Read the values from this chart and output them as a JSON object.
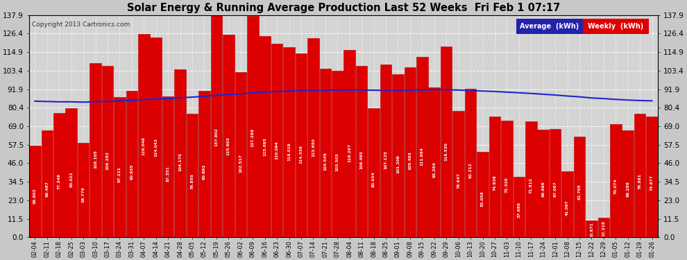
{
  "title": "Solar Energy & Running Average Production Last 52 Weeks  Fri Feb 1 07:17",
  "copyright": "Copyright 2013 Cartronics.com",
  "categories": [
    "02-04",
    "02-11",
    "02-18",
    "02-25",
    "03-03",
    "03-10",
    "03-17",
    "03-24",
    "03-31",
    "04-07",
    "04-14",
    "04-21",
    "04-28",
    "05-05",
    "05-12",
    "05-19",
    "05-26",
    "06-02",
    "06-09",
    "06-16",
    "06-23",
    "06-30",
    "07-07",
    "07-14",
    "07-21",
    "07-28",
    "08-04",
    "08-11",
    "08-18",
    "08-25",
    "09-01",
    "09-08",
    "09-15",
    "09-22",
    "09-29",
    "10-06",
    "10-13",
    "10-20",
    "10-27",
    "11-03",
    "11-10",
    "11-17",
    "11-24",
    "12-01",
    "12-08",
    "12-15",
    "12-22",
    "12-29",
    "01-05",
    "01-12",
    "01-19",
    "01-26"
  ],
  "weekly_values": [
    56.802,
    66.487,
    77.349,
    80.022,
    58.776,
    108.105,
    106.282,
    87.221,
    90.935,
    126.046,
    124.043,
    87.351,
    104.175,
    76.855,
    90.892,
    137.902,
    125.603,
    102.517,
    137.268,
    125.095,
    120.094,
    118.019,
    114.336,
    123.65,
    104.545,
    103.503,
    116.267,
    106.465,
    80.034,
    107.125,
    101.209,
    105.493,
    111.984,
    93.264,
    118.53,
    78.647,
    92.212,
    53.056,
    74.938,
    72.32,
    37.688,
    71.812,
    66.696,
    67.067,
    41.097,
    62.705,
    10.671,
    12.218,
    70.074,
    66.288,
    76.881,
    74.877
  ],
  "average_values": [
    84.5,
    84.3,
    84.1,
    84.1,
    83.9,
    84.1,
    84.4,
    84.7,
    85.0,
    85.5,
    85.9,
    86.1,
    86.6,
    87.0,
    87.5,
    88.2,
    88.6,
    89.1,
    89.6,
    90.1,
    90.5,
    90.8,
    91.0,
    91.2,
    91.3,
    91.4,
    91.5,
    91.4,
    91.3,
    91.2,
    91.1,
    91.3,
    91.5,
    91.7,
    91.6,
    91.4,
    91.1,
    90.8,
    90.5,
    90.1,
    89.7,
    89.3,
    88.8,
    88.3,
    87.7,
    87.2,
    86.5,
    86.1,
    85.6,
    85.2,
    84.9,
    84.7
  ],
  "bar_color": "#dd0000",
  "bar_edge_color": "#bb0000",
  "avg_line_color": "#2222cc",
  "background_color": "#c8c8c8",
  "plot_bg_color": "#d4d4d4",
  "grid_color": "#ffffff",
  "title_color": "#000000",
  "copyright_color": "#333333",
  "ylim": [
    0.0,
    137.9
  ],
  "yticks": [
    0.0,
    11.5,
    23.0,
    34.5,
    46.0,
    57.5,
    69.0,
    80.4,
    91.9,
    103.4,
    114.9,
    126.4,
    137.9
  ],
  "legend_avg_color": "#2222aa",
  "legend_weekly_color": "#dd0000",
  "figsize": [
    9.9,
    3.75
  ],
  "dpi": 100
}
